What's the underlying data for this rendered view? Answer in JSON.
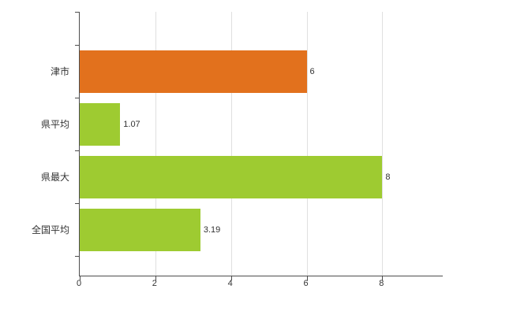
{
  "chart_data": {
    "type": "bar",
    "orientation": "horizontal",
    "title": "",
    "xlabel": "",
    "ylabel": "",
    "categories": [
      "津市",
      "県平均",
      "県最大",
      "全国平均"
    ],
    "values": [
      6,
      1.07,
      8,
      3.19
    ],
    "value_labels": [
      "6",
      "1.07",
      "8",
      "3.19"
    ],
    "bar_colors": [
      "#e2711d",
      "#9ecb31",
      "#9ecb31",
      "#9ecb31"
    ],
    "xlim": [
      0,
      9.6
    ],
    "x_ticks": [
      0,
      2,
      4,
      6,
      8
    ],
    "grid": "vertical-only",
    "legend": "none"
  },
  "colors": {
    "background": "#ffffff",
    "grid": "#e0e0e0",
    "axis": "#4d4d4d",
    "text": "#333333",
    "bar_orange": "#e2711d",
    "bar_green": "#9ecb31"
  }
}
